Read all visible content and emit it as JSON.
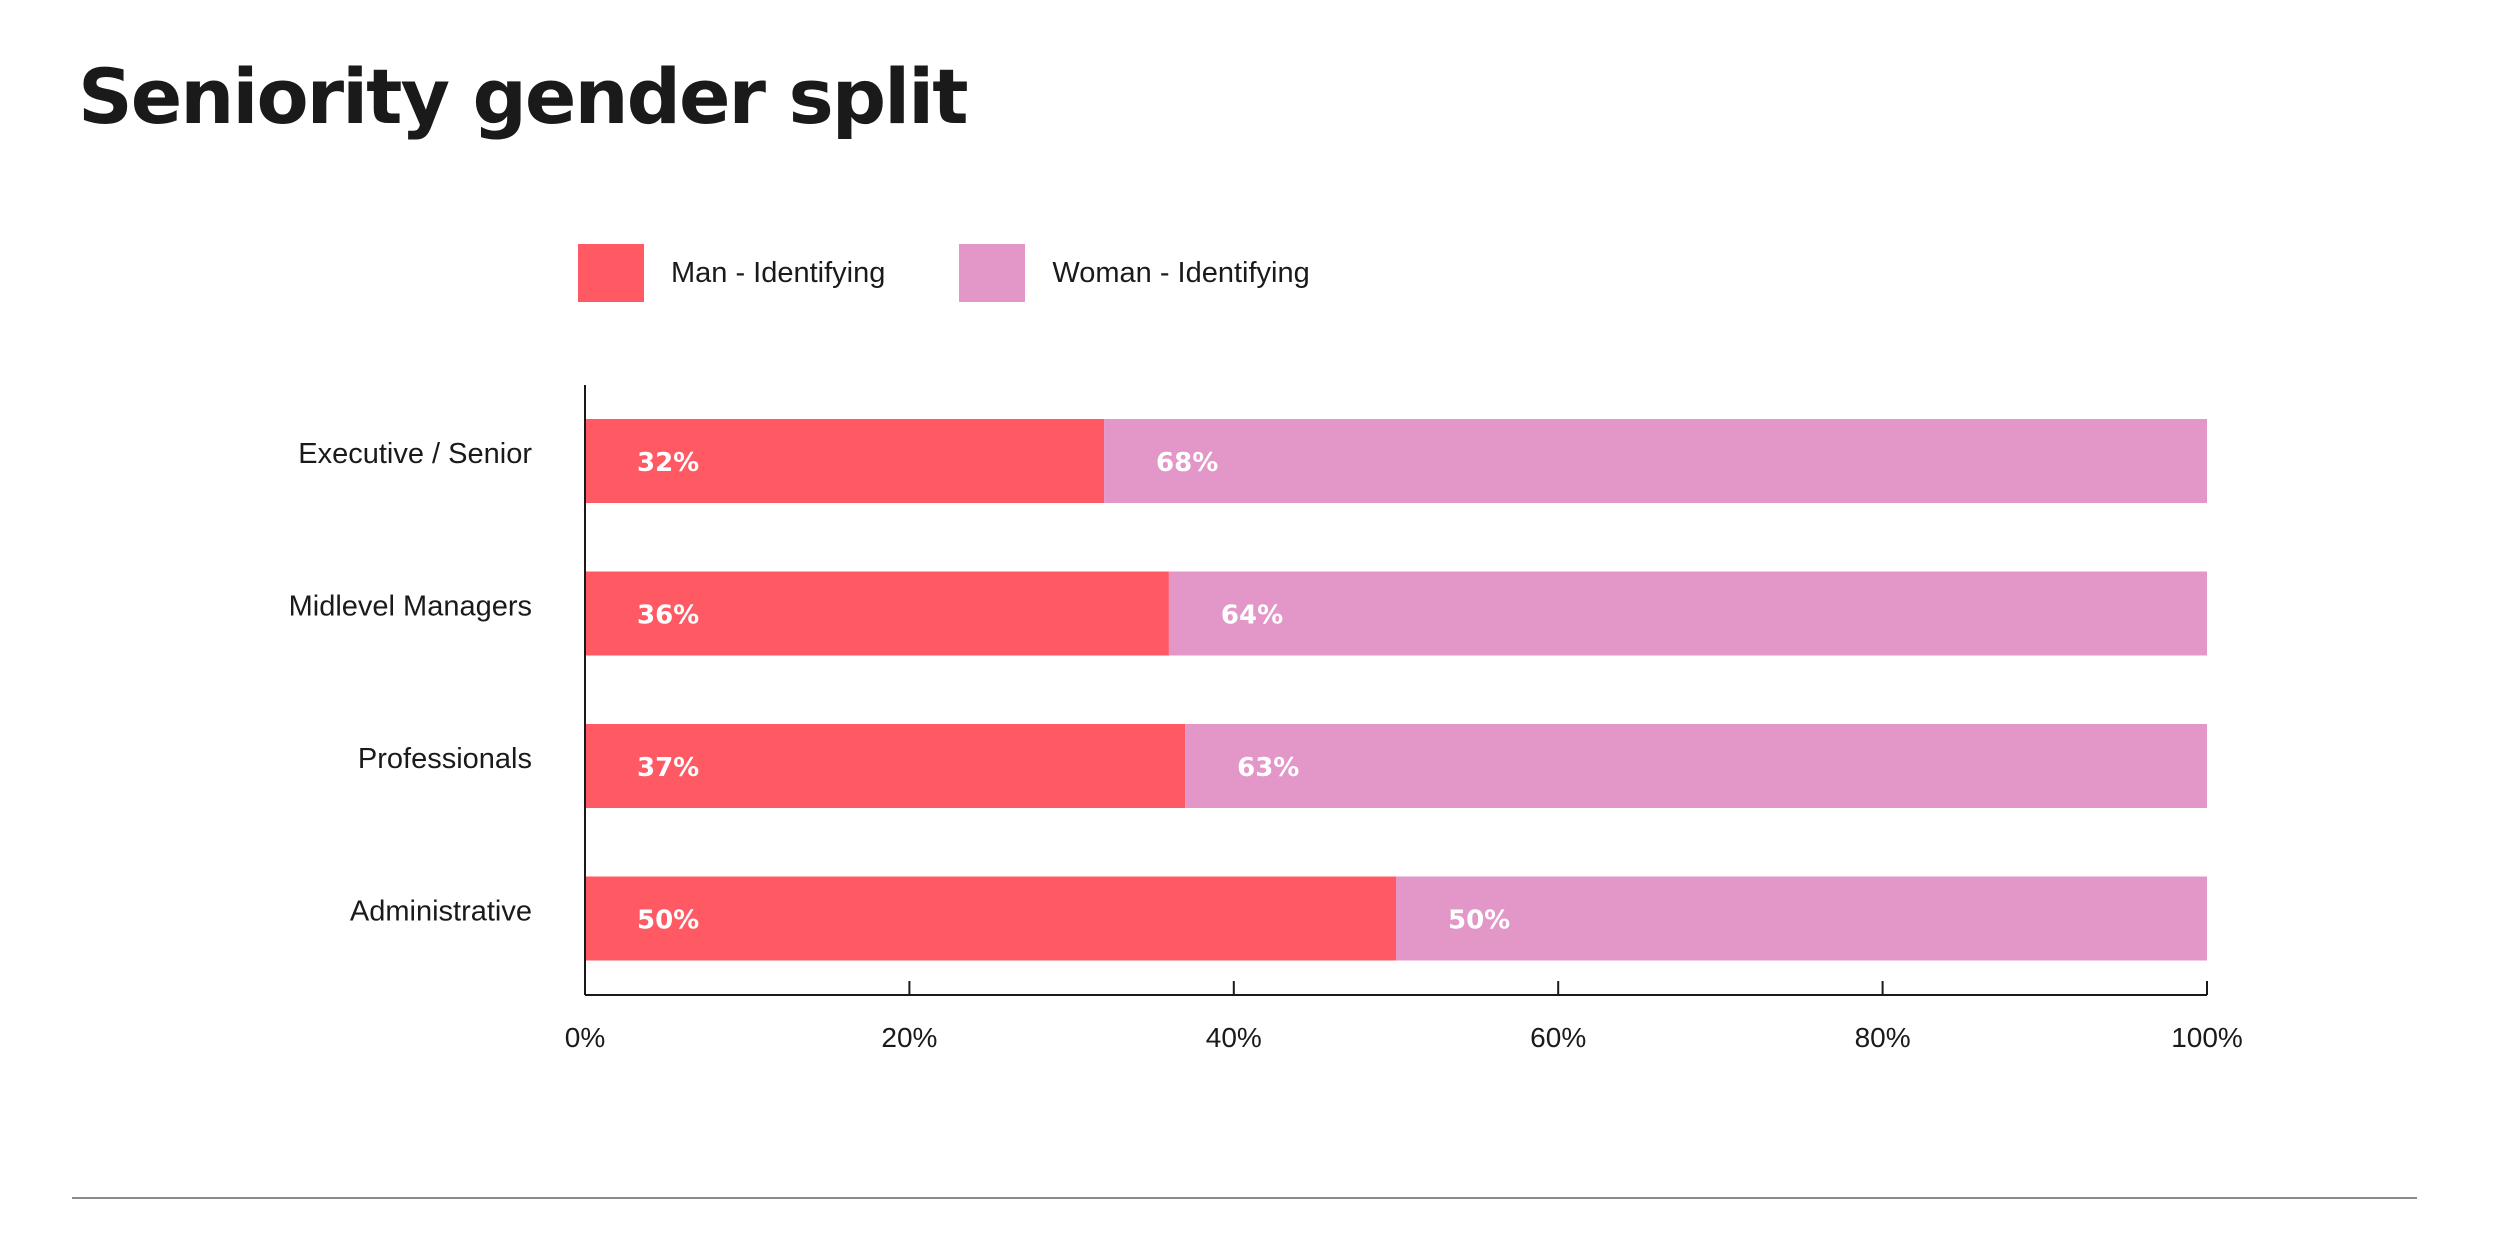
{
  "title": "Seniority gender split",
  "legend": [
    {
      "label": "Man - Identifying",
      "color": "#FF5A64"
    },
    {
      "label": "Woman - Identifying",
      "color": "#E397C8"
    }
  ],
  "chart_data": {
    "type": "bar",
    "orientation": "horizontal",
    "stacked": true,
    "categories": [
      "Executive / Senior",
      "Midlevel Managers",
      "Professionals",
      "Administrative"
    ],
    "series": [
      {
        "name": "Man - Identifying",
        "values": [
          32,
          36,
          37,
          50
        ],
        "labels": [
          "32%",
          "36%",
          "37%",
          "50%"
        ],
        "color": "#FF5A64"
      },
      {
        "name": "Woman - Identifying",
        "values": [
          68,
          64,
          63,
          50
        ],
        "labels": [
          "68%",
          "64%",
          "63%",
          "50%"
        ],
        "color": "#E397C8"
      }
    ],
    "xlim": [
      0,
      100
    ],
    "xticks": [
      0,
      20,
      40,
      60,
      80,
      100
    ],
    "xtick_labels": [
      "0%",
      "20%",
      "40%",
      "60%",
      "80%",
      "100%"
    ],
    "grid": false,
    "legend_position": "top"
  }
}
